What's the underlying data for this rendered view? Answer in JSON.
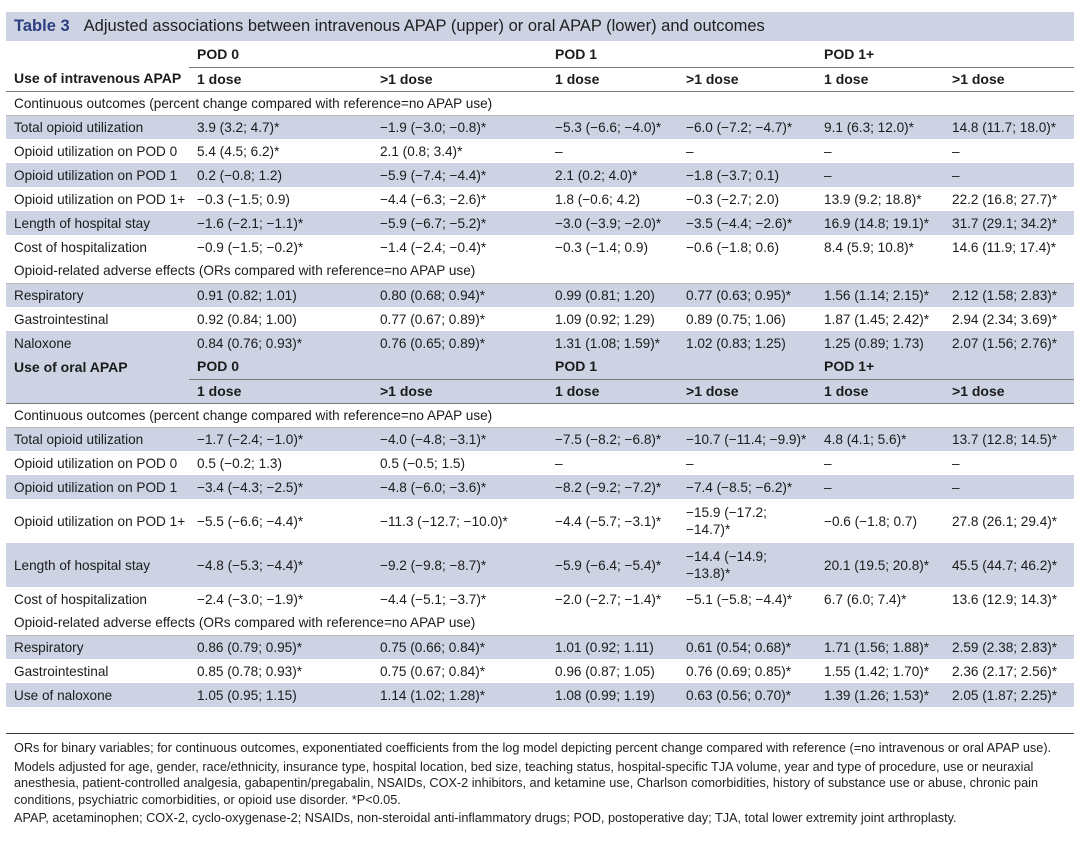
{
  "table": {
    "label": "Table 3",
    "caption": "Adjusted associations between intravenous APAP (upper) or oral APAP (lower) and outcomes"
  },
  "upper": {
    "header_title": "Use of intravenous APAP",
    "pods": [
      "POD 0",
      "POD 1",
      "POD 1+"
    ],
    "doses": [
      "1 dose",
      ">1 dose",
      "1 dose",
      ">1 dose",
      "1 dose",
      ">1 dose"
    ],
    "section_continuous": "Continuous outcomes (percent change compared with reference=no APAP use)",
    "continuous_rows": [
      {
        "label": "Total opioid utilization",
        "cells": [
          "3.9 (3.2; 4.7)*",
          "−1.9 (−3.0; −0.8)*",
          "−5.3 (−6.6; −4.0)*",
          "−6.0 (−7.2; −4.7)*",
          "9.1 (6.3; 12.0)*",
          "14.8 (11.7; 18.0)*"
        ]
      },
      {
        "label": "Opioid utilization on POD 0",
        "cells": [
          "5.4 (4.5; 6.2)*",
          "2.1 (0.8; 3.4)*",
          "–",
          "–",
          "–",
          "–"
        ]
      },
      {
        "label": "Opioid utilization on POD 1",
        "cells": [
          "0.2 (−0.8; 1.2)",
          "−5.9 (−7.4; −4.4)*",
          "2.1 (0.2; 4.0)*",
          "−1.8 (−3.7; 0.1)",
          "–",
          "–"
        ]
      },
      {
        "label": "Opioid utilization on POD 1+",
        "cells": [
          "−0.3 (−1.5; 0.9)",
          "−4.4 (−6.3; −2.6)*",
          "1.8 (−0.6; 4.2)",
          "−0.3 (−2.7; 2.0)",
          "13.9 (9.2; 18.8)*",
          "22.2 (16.8; 27.7)*"
        ]
      },
      {
        "label": "Length of hospital stay",
        "cells": [
          "−1.6 (−2.1; −1.1)*",
          "−5.9 (−6.7; −5.2)*",
          "−3.0 (−3.9; −2.0)*",
          "−3.5 (−4.4; −2.6)*",
          "16.9 (14.8; 19.1)*",
          "31.7 (29.1; 34.2)*"
        ]
      },
      {
        "label": "Cost of hospitalization",
        "cells": [
          "−0.9 (−1.5; −0.2)*",
          "−1.4 (−2.4; −0.4)*",
          "−0.3 (−1.4; 0.9)",
          "−0.6 (−1.8; 0.6)",
          "8.4 (5.9; 10.8)*",
          "14.6 (11.9; 17.4)*"
        ]
      }
    ],
    "section_adverse": "Opioid-related adverse effects (ORs compared with reference=no APAP use)",
    "adverse_rows": [
      {
        "label": "Respiratory",
        "cells": [
          "0.91 (0.82; 1.01)",
          "0.80 (0.68; 0.94)*",
          "0.99 (0.81; 1.20)",
          "0.77 (0.63; 0.95)*",
          "1.56 (1.14; 2.15)*",
          "2.12 (1.58; 2.83)*"
        ]
      },
      {
        "label": "Gastrointestinal",
        "cells": [
          "0.92 (0.84; 1.00)",
          "0.77 (0.67; 0.89)*",
          "1.09 (0.92; 1.29)",
          "0.89 (0.75; 1.06)",
          "1.87 (1.45; 2.42)*",
          "2.94 (2.34; 3.69)*"
        ]
      },
      {
        "label": "Naloxone",
        "cells": [
          "0.84 (0.76; 0.93)*",
          "0.76 (0.65; 0.89)*",
          "1.31 (1.08; 1.59)*",
          "1.02 (0.83; 1.25)",
          "1.25 (0.89; 1.73)",
          "2.07 (1.56; 2.76)*"
        ]
      }
    ]
  },
  "lower": {
    "header_title": "Use of oral APAP",
    "pods": [
      "POD 0",
      "POD 1",
      "POD 1+"
    ],
    "doses": [
      "1 dose",
      ">1 dose",
      "1 dose",
      ">1 dose",
      "1 dose",
      ">1 dose"
    ],
    "section_continuous": "Continuous outcomes (percent change compared with reference=no APAP use)",
    "continuous_rows": [
      {
        "label": "Total opioid utilization",
        "cells": [
          "−1.7 (−2.4; −1.0)*",
          "−4.0 (−4.8; −3.1)*",
          "−7.5 (−8.2; −6.8)*",
          "−10.7 (−11.4; −9.9)*",
          "4.8 (4.1; 5.6)*",
          "13.7 (12.8; 14.5)*"
        ]
      },
      {
        "label": "Opioid utilization on POD 0",
        "cells": [
          "0.5 (−0.2; 1.3)",
          "0.5 (−0.5; 1.5)",
          "–",
          "–",
          "–",
          "–"
        ]
      },
      {
        "label": "Opioid utilization on POD 1",
        "cells": [
          "−3.4 (−4.3; −2.5)*",
          "−4.8 (−6.0; −3.6)*",
          "−8.2 (−9.2; −7.2)*",
          "−7.4 (−8.5; −6.2)*",
          "–",
          "–"
        ]
      },
      {
        "label": "Opioid utilization on POD 1+",
        "cells": [
          "−5.5 (−6.6; −4.4)*",
          "−11.3 (−12.7; −10.0)*",
          "−4.4 (−5.7; −3.1)*",
          "−15.9 (−17.2; −14.7)*",
          "−0.6 (−1.8; 0.7)",
          "27.8 (26.1; 29.4)*"
        ]
      },
      {
        "label": "Length of hospital stay",
        "cells": [
          "−4.8 (−5.3; −4.4)*",
          "−9.2 (−9.8; −8.7)*",
          "−5.9 (−6.4; −5.4)*",
          "−14.4 (−14.9; −13.8)*",
          "20.1 (19.5; 20.8)*",
          "45.5 (44.7; 46.2)*"
        ]
      },
      {
        "label": "Cost of hospitalization",
        "cells": [
          "−2.4 (−3.0; −1.9)*",
          "−4.4 (−5.1; −3.7)*",
          "−2.0 (−2.7; −1.4)*",
          "−5.1 (−5.8; −4.4)*",
          "6.7 (6.0; 7.4)*",
          "13.6 (12.9; 14.3)*"
        ]
      }
    ],
    "section_adverse": "Opioid-related adverse effects (ORs compared with reference=no APAP use)",
    "adverse_rows": [
      {
        "label": "Respiratory",
        "cells": [
          "0.86 (0.79; 0.95)*",
          "0.75 (0.66; 0.84)*",
          "1.01 (0.92; 1.11)",
          "0.61 (0.54; 0.68)*",
          "1.71 (1.56; 1.88)*",
          "2.59 (2.38; 2.83)*"
        ]
      },
      {
        "label": "Gastrointestinal",
        "cells": [
          "0.85 (0.78; 0.93)*",
          "0.75 (0.67; 0.84)*",
          "0.96 (0.87; 1.05)",
          "0.76 (0.69; 0.85)*",
          "1.55 (1.42; 1.70)*",
          "2.36 (2.17; 2.56)*"
        ]
      },
      {
        "label": "Use of naloxone",
        "cells": [
          "1.05 (0.95; 1.15)",
          "1.14 (1.02; 1.28)*",
          "1.08 (0.99; 1.19)",
          "0.63 (0.56; 0.70)*",
          "1.39 (1.26; 1.53)*",
          "2.05 (1.87; 2.25)*"
        ]
      }
    ]
  },
  "footnotes": [
    "ORs for binary variables; for continuous outcomes, exponentiated coefficients from the log model depicting percent change compared with reference (=no intravenous or oral APAP use).",
    "Models adjusted for age, gender, race/ethnicity, insurance type, hospital location, bed size, teaching status, hospital-specific TJA volume, year and type of procedure, use or neuraxial anesthesia, patient-controlled analgesia, gabapentin/pregabalin, NSAIDs, COX-2 inhibitors, and ketamine use, Charlson comorbidities, history of substance use or abuse, chronic pain conditions, psychiatric comorbidities, or opioid use disorder. *P<0.05.",
    "APAP, acetaminophen; COX-2, cyclo-oxygenase-2; NSAIDs, non-steroidal anti-inflammatory drugs; POD, postoperative day; TJA, total lower extremity joint arthroplasty."
  ]
}
